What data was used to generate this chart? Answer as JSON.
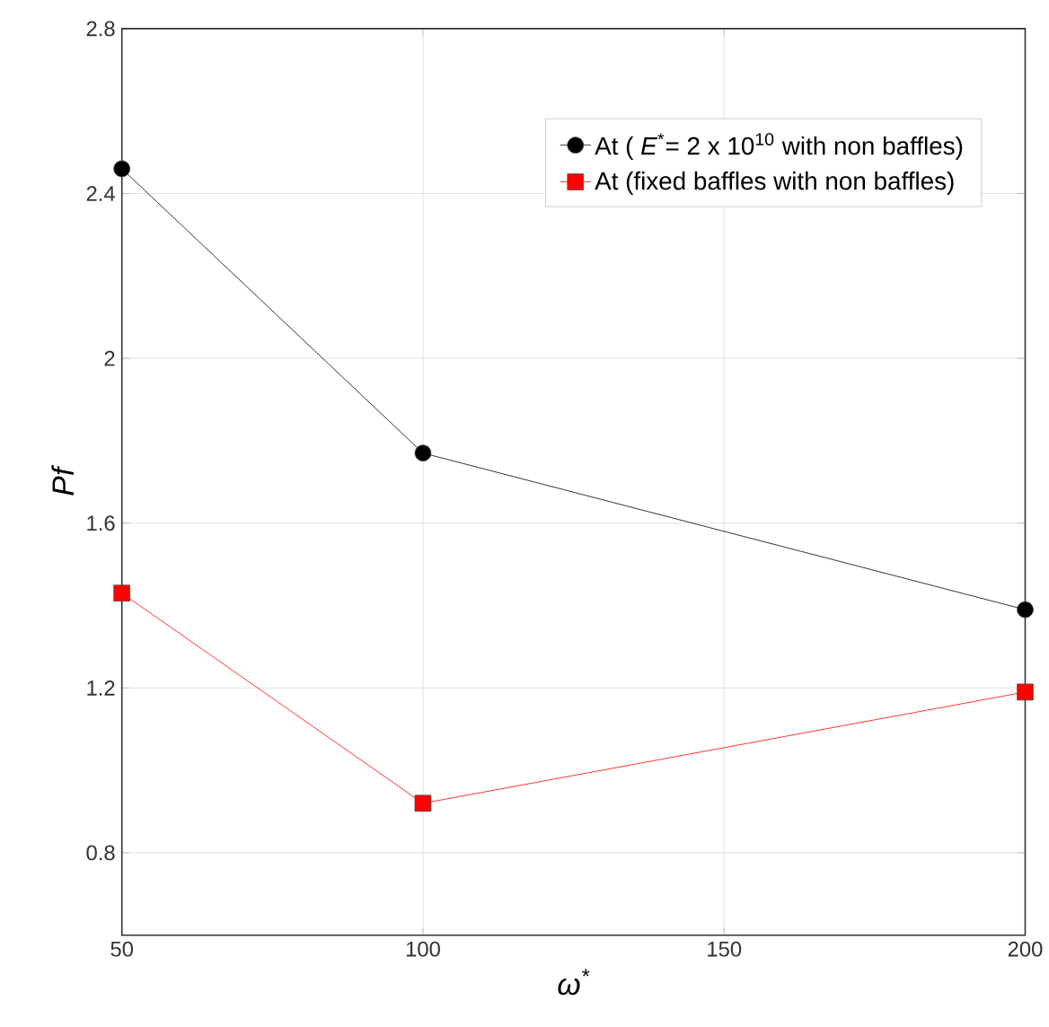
{
  "chart_data": {
    "type": "line",
    "xlabel": "ω$^{*}$",
    "ylabel": "Pf",
    "x": [
      50,
      100,
      200
    ],
    "series": [
      {
        "name": "At ( *E*$^{*}$= 2 x 10$^{10}$ with non baffles)",
        "color": "#000000",
        "marker": "circle",
        "values": [
          2.46,
          1.77,
          1.39
        ]
      },
      {
        "name": "At (fixed baffles with non baffles)",
        "color": "#ff0000",
        "marker": "square",
        "values": [
          1.43,
          0.92,
          1.19
        ]
      }
    ],
    "xlim": [
      50,
      200
    ],
    "xticks": [
      50,
      100,
      150,
      200
    ],
    "ylim": [
      0.6,
      2.8
    ],
    "yticks": [
      0.8,
      1.2,
      1.6,
      2,
      2.4,
      2.8
    ],
    "grid": true,
    "legend": "top right",
    "line_style": "solid"
  }
}
